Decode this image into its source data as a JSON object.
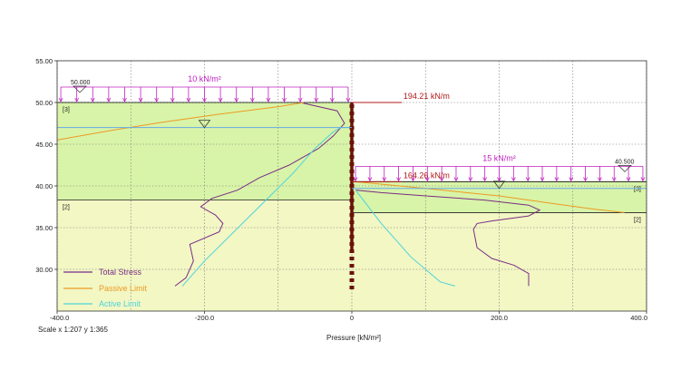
{
  "chart_data": {
    "type": "line",
    "xlabel": "Pressure [kN/m²]",
    "scale_text": "Scale x 1:207  y 1:365",
    "xlim": [
      -400,
      400
    ],
    "ylim": [
      25,
      55
    ],
    "xticks": [
      {
        "value": -400,
        "label": "-400.0"
      },
      {
        "value": -200,
        "label": "-200.0"
      },
      {
        "value": 0,
        "label": "0"
      },
      {
        "value": 200,
        "label": "200.0"
      },
      {
        "value": 400,
        "label": "400.0"
      }
    ],
    "yticks": [
      {
        "value": 55,
        "label": "55.00"
      },
      {
        "value": 50,
        "label": "50.00"
      },
      {
        "value": 45,
        "label": "45.00"
      },
      {
        "value": 40,
        "label": "40.00"
      },
      {
        "value": 35,
        "label": "35.00"
      },
      {
        "value": 30,
        "label": "30.00"
      }
    ],
    "grid": true,
    "legend_position": "bottom-left",
    "colors": {
      "soil_green": "#d8f4a8",
      "soil_yellow": "#f2f7c4",
      "total_stress": "#7a2c86",
      "passive": "#ee9a22",
      "active": "#4fd2da",
      "surcharge": "#c020c0",
      "force": "#b01818",
      "water": "#66a8e8",
      "wall": "#6a1208"
    },
    "series": [
      {
        "name": "Total Stress",
        "color": "#7a2c86",
        "x": [
          -240,
          -225,
          -215,
          -220,
          -180,
          -175,
          -185,
          -205,
          -190,
          -155,
          -125,
          -85,
          -45,
          -25,
          -10,
          -20,
          -70
        ],
        "y": [
          28,
          29,
          31,
          33,
          34.5,
          35.5,
          36.5,
          37.5,
          38.5,
          39.5,
          41,
          42.5,
          44.5,
          46,
          47.5,
          49,
          50
        ]
      },
      {
        "name": "Passive Limit",
        "color": "#ee9a22",
        "x": [
          -400,
          -330,
          -260,
          -180,
          -100,
          -65
        ],
        "y": [
          45.5,
          46.6,
          47.6,
          48.6,
          49.5,
          50
        ]
      },
      {
        "name": "Active Limit",
        "color": "#4fd2da",
        "x": [
          -230,
          -200,
          -160,
          -120,
          -80,
          -50,
          -25,
          -15,
          -3
        ],
        "y": [
          28,
          31,
          34.5,
          38,
          41.5,
          44.5,
          46.5,
          47,
          47
        ]
      },
      {
        "name": "Total Stress (right)",
        "color": "#7a2c86",
        "x": [
          5,
          40,
          100,
          180,
          240,
          255,
          240,
          190,
          170,
          165,
          170,
          190,
          220,
          240,
          240
        ],
        "y": [
          39.5,
          39.2,
          38.8,
          38.3,
          37.7,
          37.1,
          36.4,
          35.8,
          35.5,
          34.8,
          32.6,
          31.3,
          30.5,
          29.5,
          28
        ]
      },
      {
        "name": "Passive Limit (right)",
        "color": "#ee9a22",
        "x": [
          5,
          100,
          200,
          280,
          330,
          370
        ],
        "y": [
          40.5,
          39.7,
          38.8,
          37.8,
          37.2,
          36.8
        ]
      },
      {
        "name": "Active Limit (right)",
        "color": "#4fd2da",
        "x": [
          5,
          40,
          80,
          120,
          140
        ],
        "y": [
          39.5,
          35.5,
          31.5,
          28.5,
          28
        ]
      }
    ],
    "layers": {
      "left": [
        {
          "id": "[3]",
          "top": 50,
          "bottom": 38.3,
          "color": "#d8f4a8"
        },
        {
          "id": "[2]",
          "top": 38.3,
          "bottom": 25,
          "color": "#f2f7c4"
        }
      ],
      "right": [
        {
          "id": "[3]",
          "top": 40.5,
          "bottom": 36.8,
          "color": "#d8f4a8"
        },
        {
          "id": "[2]",
          "top": 36.8,
          "bottom": 25,
          "color": "#f2f7c4"
        }
      ]
    },
    "water_levels": [
      {
        "side": "left",
        "level": 47,
        "symbol_x": -200
      },
      {
        "side": "right",
        "level": 39.7,
        "symbol_x": 200
      }
    ],
    "surcharges": [
      {
        "side": "left",
        "value_label": "10 kN/m²",
        "level": 50,
        "x_from": -395,
        "x_to": -5,
        "level_label": "50.000"
      },
      {
        "side": "right",
        "value_label": "15 kN/m²",
        "level": 40.5,
        "x_from": 5,
        "x_to": 395,
        "level_label": "40.500"
      }
    ],
    "resultant_forces": [
      {
        "label": "194.21 kN/m",
        "level": 50
      },
      {
        "label": "164.26 kN/m",
        "level": 40.5
      }
    ],
    "wall": {
      "x": 0,
      "top": 50,
      "bottom": 28,
      "embed_bottom": 32
    }
  }
}
